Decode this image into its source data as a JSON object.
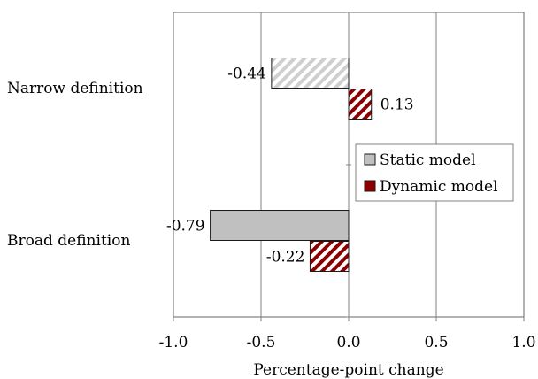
{
  "chart_data": {
    "type": "bar",
    "orientation": "horizontal",
    "categories": [
      "Narrow definition",
      "Broad definition"
    ],
    "series": [
      {
        "name": "Static model",
        "values": [
          -0.44,
          -0.79
        ],
        "color": "#c0c0c0",
        "hatched_for_category": [
          true,
          false
        ]
      },
      {
        "name": "Dynamic model",
        "values": [
          0.13,
          -0.22
        ],
        "color": "#8b0000",
        "hatched_for_category": [
          true,
          true
        ]
      }
    ],
    "value_labels": [
      [
        "-0.44",
        "-0.79"
      ],
      [
        "0.13",
        "-0.22"
      ]
    ],
    "xlabel": "Percentage-point change",
    "xlim": [
      -1.0,
      1.0
    ],
    "xticks": [
      -1.0,
      -0.5,
      0.0,
      0.5,
      1.0
    ],
    "xtick_labels": [
      "-1.0",
      "-0.5",
      "0.0",
      "0.5",
      "1.0"
    ],
    "grid": "vertical",
    "legend": {
      "position": "right",
      "entries": [
        "Static model",
        "Dynamic model"
      ]
    }
  }
}
